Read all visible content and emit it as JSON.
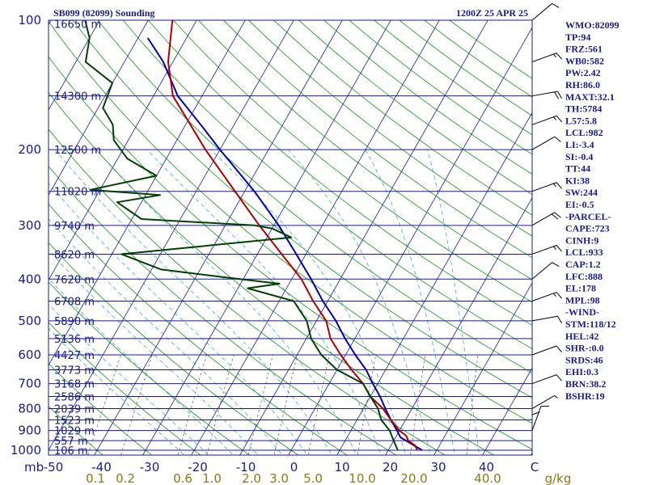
{
  "header": {
    "station": "SB099 (82099) Sounding",
    "time": "1200Z 25 APR 25"
  },
  "colors": {
    "frame": "#1a1a8c",
    "isobar": "#1a1a8c",
    "isotherm": "#3030a8",
    "dry_adiabat": "#2aa02a",
    "moist_adiabat": "#40a8d8",
    "mixing_ratio": "#707070",
    "temperature": "#b00000",
    "dewpoint": "#004000",
    "parcel": "#0000b0",
    "mixing_label": "#8a7a10"
  },
  "chart_data": {
    "type": "skew-t",
    "pressure_axis_unit": "mb",
    "pressure_levels": [
      100,
      200,
      300,
      400,
      500,
      600,
      700,
      800,
      900,
      1000
    ],
    "height_labels": [
      {
        "p": 102,
        "label": "16650 m"
      },
      {
        "p": 150,
        "label": "14300 m"
      },
      {
        "p": 200,
        "label": "12500 m"
      },
      {
        "p": 250,
        "label": "11020 m"
      },
      {
        "p": 300,
        "label": "9740 m"
      },
      {
        "p": 350,
        "label": "8620 m"
      },
      {
        "p": 400,
        "label": "7620 m"
      },
      {
        "p": 450,
        "label": "6708 m"
      },
      {
        "p": 500,
        "label": "5890 m"
      },
      {
        "p": 550,
        "label": "5136 m"
      },
      {
        "p": 600,
        "label": "4427 m"
      },
      {
        "p": 650,
        "label": "3773 m"
      },
      {
        "p": 700,
        "label": "3168 m"
      },
      {
        "p": 750,
        "label": "2586 m"
      },
      {
        "p": 800,
        "label": "2039 m"
      },
      {
        "p": 850,
        "label": "1523 m"
      },
      {
        "p": 900,
        "label": "1029 m"
      },
      {
        "p": 950,
        "label": "557 m"
      },
      {
        "p": 1000,
        "label": "106 m"
      }
    ],
    "temperature_ticks": [
      "-50",
      "-40",
      "-30",
      "-20",
      "-10",
      "0",
      "10",
      "20",
      "30",
      "40",
      "C"
    ],
    "mixing_ratio_ticks": [
      "0.1",
      "0.2",
      "0.6",
      "1.0",
      "2.0",
      "3.0",
      "5.0",
      "10.0",
      "20.0",
      "40.0",
      "g/kg"
    ],
    "mixing_ratio_values": [
      0.1,
      0.2,
      0.6,
      1.0,
      2.0,
      3.0,
      5.0,
      10.0,
      20.0,
      40.0
    ],
    "temperature_profile": [
      {
        "p": 1000,
        "t": 26
      },
      {
        "p": 975,
        "t": 25
      },
      {
        "p": 950,
        "t": 23
      },
      {
        "p": 925,
        "t": 22
      },
      {
        "p": 900,
        "t": 20
      },
      {
        "p": 850,
        "t": 17
      },
      {
        "p": 800,
        "t": 14
      },
      {
        "p": 750,
        "t": 10
      },
      {
        "p": 700,
        "t": 7
      },
      {
        "p": 650,
        "t": 3
      },
      {
        "p": 600,
        "t": -1
      },
      {
        "p": 550,
        "t": -5
      },
      {
        "p": 500,
        "t": -8
      },
      {
        "p": 450,
        "t": -13
      },
      {
        "p": 400,
        "t": -18
      },
      {
        "p": 350,
        "t": -25
      },
      {
        "p": 300,
        "t": -33
      },
      {
        "p": 250,
        "t": -42
      },
      {
        "p": 200,
        "t": -53
      },
      {
        "p": 175,
        "t": -59
      },
      {
        "p": 150,
        "t": -66
      },
      {
        "p": 125,
        "t": -71
      },
      {
        "p": 100,
        "t": -75
      }
    ],
    "dewpoint_profile": [
      {
        "p": 1000,
        "td": 22
      },
      {
        "p": 975,
        "td": 21
      },
      {
        "p": 950,
        "td": 20
      },
      {
        "p": 925,
        "td": 19
      },
      {
        "p": 900,
        "td": 18
      },
      {
        "p": 850,
        "td": 15
      },
      {
        "p": 800,
        "td": 13
      },
      {
        "p": 750,
        "td": 10
      },
      {
        "p": 700,
        "td": 7
      },
      {
        "p": 650,
        "td": 0
      },
      {
        "p": 600,
        "td": -5
      },
      {
        "p": 550,
        "td": -9
      },
      {
        "p": 500,
        "td": -12
      },
      {
        "p": 450,
        "td": -17
      },
      {
        "p": 420,
        "td": -28
      },
      {
        "p": 410,
        "td": -22
      },
      {
        "p": 395,
        "td": -35
      },
      {
        "p": 380,
        "td": -48
      },
      {
        "p": 350,
        "td": -58
      },
      {
        "p": 320,
        "td": -25
      },
      {
        "p": 305,
        "td": -30
      },
      {
        "p": 300,
        "td": -34
      },
      {
        "p": 290,
        "td": -58
      },
      {
        "p": 265,
        "td": -65
      },
      {
        "p": 255,
        "td": -57
      },
      {
        "p": 248,
        "td": -72
      },
      {
        "p": 230,
        "td": -60
      },
      {
        "p": 210,
        "td": -68
      },
      {
        "p": 190,
        "td": -73
      },
      {
        "p": 175,
        "td": -75
      },
      {
        "p": 160,
        "td": -79
      },
      {
        "p": 140,
        "td": -80
      },
      {
        "p": 125,
        "td": -88
      },
      {
        "p": 110,
        "td": -90
      },
      {
        "p": 100,
        "td": -93
      }
    ],
    "parcel_profile": [
      {
        "p": 1000,
        "t": 27
      },
      {
        "p": 933,
        "t": 21
      },
      {
        "p": 900,
        "t": 19.5
      },
      {
        "p": 850,
        "t": 17
      },
      {
        "p": 800,
        "t": 14.5
      },
      {
        "p": 750,
        "t": 12
      },
      {
        "p": 700,
        "t": 9
      },
      {
        "p": 650,
        "t": 6
      },
      {
        "p": 600,
        "t": 2
      },
      {
        "p": 550,
        "t": -2
      },
      {
        "p": 500,
        "t": -6
      },
      {
        "p": 450,
        "t": -11
      },
      {
        "p": 400,
        "t": -16
      },
      {
        "p": 350,
        "t": -22
      },
      {
        "p": 300,
        "t": -29
      },
      {
        "p": 250,
        "t": -38
      },
      {
        "p": 200,
        "t": -50
      },
      {
        "p": 178,
        "t": -56
      },
      {
        "p": 150,
        "t": -65
      },
      {
        "p": 125,
        "t": -72
      },
      {
        "p": 110,
        "t": -78
      }
    ],
    "wind_barbs": [
      {
        "p": 100,
        "dir": 230,
        "spd": 10
      },
      {
        "p": 125,
        "dir": 250,
        "spd": 15
      },
      {
        "p": 150,
        "dir": 260,
        "spd": 20
      },
      {
        "p": 175,
        "dir": 250,
        "spd": 15
      },
      {
        "p": 200,
        "dir": 240,
        "spd": 10
      },
      {
        "p": 250,
        "dir": 250,
        "spd": 15
      },
      {
        "p": 300,
        "dir": 240,
        "spd": 20
      },
      {
        "p": 350,
        "dir": 250,
        "spd": 15
      },
      {
        "p": 400,
        "dir": 230,
        "spd": 10
      },
      {
        "p": 450,
        "dir": 250,
        "spd": 15
      },
      {
        "p": 500,
        "dir": 260,
        "spd": 10
      },
      {
        "p": 600,
        "dir": 250,
        "spd": 10
      },
      {
        "p": 700,
        "dir": 250,
        "spd": 10
      },
      {
        "p": 800,
        "dir": 240,
        "spd": 5
      },
      {
        "p": 900,
        "dir": 200,
        "spd": 10
      },
      {
        "p": 950,
        "dir": 180,
        "spd": 10
      }
    ]
  },
  "indices": [
    "WMO:82099",
    "TP:94",
    "FRZ:561",
    "WB0:582",
    "PW:2.42",
    "RH:86.0",
    "MAXT:32.1",
    "TH:5784",
    "L57:5.8",
    "LCL:982",
    "LI:-3.4",
    "SI:-0.4",
    "TT:44",
    "KI:38",
    "SW:244",
    "EI:-0.5",
    "-PARCEL-",
    "CAPE:723",
    "CINH:9",
    "LCL:933",
    "CAP:1.2",
    "LFC:888",
    "EL:178",
    "MPL:98",
    "-WIND-",
    "STM:118/12",
    "HEL:42",
    "SHR-:0.0",
    "SRDS:46",
    "EHI:0.3",
    "BRN:38.2",
    "BSHR:19"
  ]
}
